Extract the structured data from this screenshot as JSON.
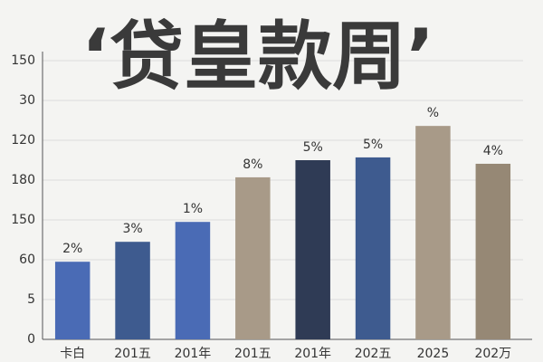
{
  "chart_data": {
    "type": "bar",
    "title": "‘贷皇款周’",
    "categories": [
      "卡白",
      "201五",
      "201年",
      "201五",
      "201年",
      "202五",
      "2025",
      "202万"
    ],
    "values": [
      1.95,
      2.45,
      2.95,
      4.07,
      4.5,
      4.57,
      5.36,
      4.41
    ],
    "annotations": [
      "2%",
      "3%",
      "1%",
      "8%",
      "5%",
      "5%",
      "%",
      "4%"
    ],
    "colors": [
      "#4a6bb5",
      "#3e5b8f",
      "#4a6bb5",
      "#a89a88",
      "#2f3b55",
      "#3e5b8f",
      "#a89a88",
      "#968875"
    ],
    "ylim": [
      0,
      7
    ],
    "yticks": [
      {
        "value": 0,
        "label": "0"
      },
      {
        "value": 1,
        "label": "5"
      },
      {
        "value": 2,
        "label": "60"
      },
      {
        "value": 3,
        "label": "150"
      },
      {
        "value": 4,
        "label": "180"
      },
      {
        "value": 5,
        "label": "120"
      },
      {
        "value": 6,
        "label": "30"
      },
      {
        "value": 7,
        "label": "150"
      }
    ],
    "grid": true
  }
}
